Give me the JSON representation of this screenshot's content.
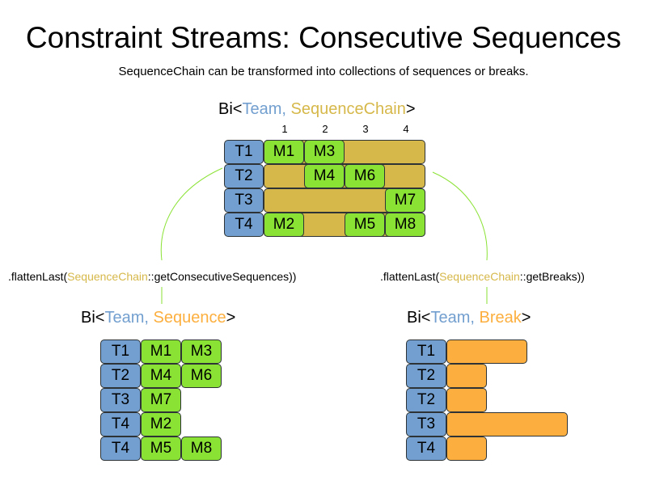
{
  "title": "Constraint Streams: Consecutive Sequences",
  "subtitle": "SequenceChain can be transformed into collections of sequences or breaks.",
  "colors": {
    "team": "#729fcf",
    "chain": "#d6b84a",
    "match": "#8ae234",
    "break": "#fcaf3e",
    "connector": "#8ae234"
  },
  "top": {
    "tuple": {
      "prefix": "Bi<",
      "a": "Team",
      "sep": ", ",
      "b": "SequenceChain",
      "suffix": ">"
    },
    "columns": [
      "1",
      "2",
      "3",
      "4"
    ],
    "rows": [
      {
        "team": "T1",
        "slots": [
          "M1",
          "M3",
          "",
          ""
        ]
      },
      {
        "team": "T2",
        "slots": [
          "",
          "M4",
          "M6",
          ""
        ]
      },
      {
        "team": "T3",
        "slots": [
          "",
          "",
          "",
          "M7"
        ]
      },
      {
        "team": "T4",
        "slots": [
          "M2",
          "",
          "M5",
          "M8"
        ]
      }
    ]
  },
  "left": {
    "call": {
      "prefix": ".flattenLast(",
      "cls": "SequenceChain",
      "rest": "::getConsecutiveSequences))"
    },
    "tuple": {
      "prefix": "Bi<",
      "a": "Team",
      "sep": ", ",
      "b": "Sequence",
      "suffix": ">"
    },
    "rows": [
      {
        "team": "T1",
        "items": [
          "M1",
          "M3"
        ]
      },
      {
        "team": "T2",
        "items": [
          "M4",
          "M6"
        ]
      },
      {
        "team": "T3",
        "items": [
          "M7"
        ]
      },
      {
        "team": "T4",
        "items": [
          "M2"
        ]
      },
      {
        "team": "T4",
        "items": [
          "M5",
          "M8"
        ]
      }
    ]
  },
  "right": {
    "call": {
      "prefix": ".flattenLast(",
      "cls": "SequenceChain",
      "rest": "::getBreaks))"
    },
    "tuple": {
      "prefix": "Bi<",
      "a": "Team",
      "sep": ", ",
      "b": "Break",
      "suffix": ">"
    },
    "rows": [
      {
        "team": "T1",
        "length": 2
      },
      {
        "team": "T2",
        "length": 1
      },
      {
        "team": "T2",
        "length": 1
      },
      {
        "team": "T3",
        "length": 3
      },
      {
        "team": "T4",
        "length": 1
      }
    ]
  }
}
